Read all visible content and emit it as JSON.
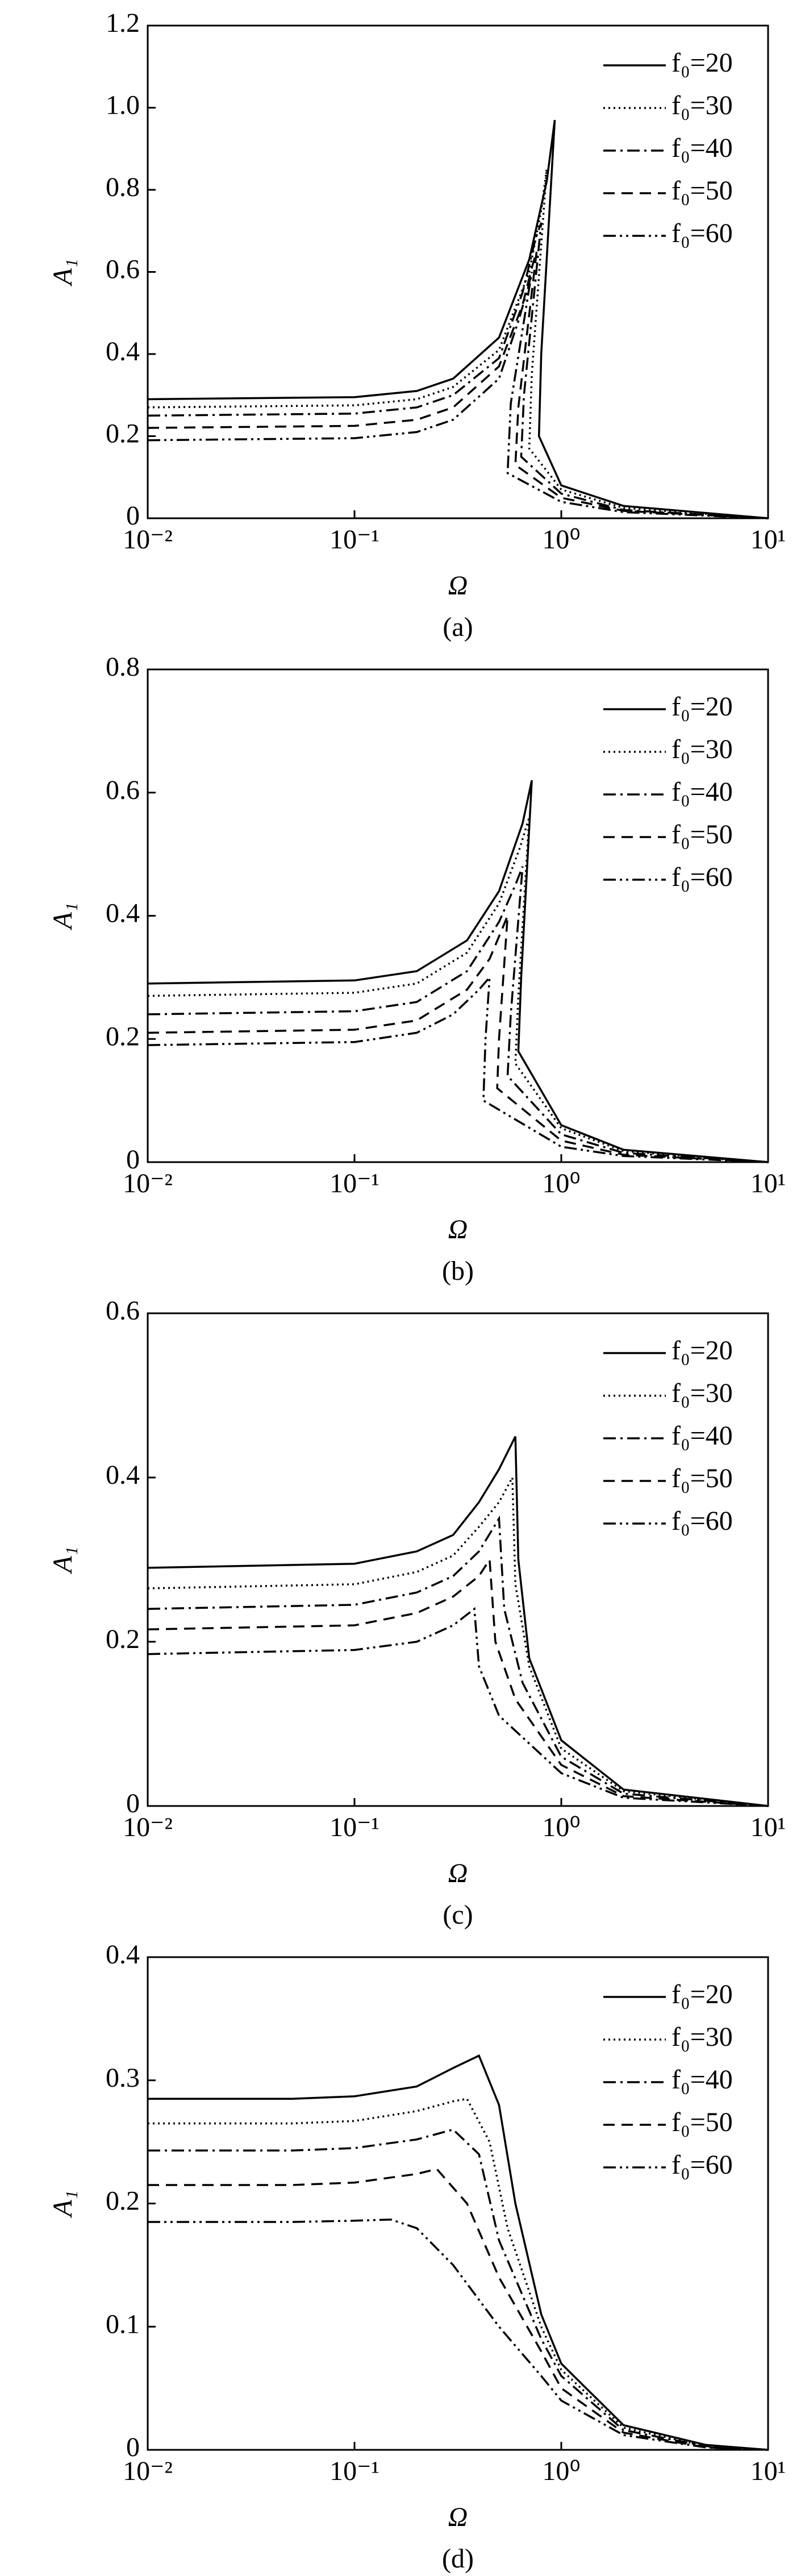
{
  "chart_data": [
    {
      "type": "line",
      "caption": "(a)",
      "x_label": "Ω",
      "y_label": "A₁",
      "log_x": true,
      "xlim": [
        0.01,
        10
      ],
      "xticks": [
        {
          "value": 0.01,
          "label": "10⁻²"
        },
        {
          "value": 0.1,
          "label": "10⁻¹"
        },
        {
          "value": 1,
          "label": "10⁰"
        },
        {
          "value": 10,
          "label": "10¹"
        }
      ],
      "ylim": [
        0,
        1.2
      ],
      "yticks": [
        0,
        0.2,
        0.4,
        0.6,
        0.8,
        {
          "value": 1,
          "label": "1.0"
        },
        1.2
      ],
      "legend": "upper right",
      "series": [
        {
          "name": "f₀=20",
          "color": "#000",
          "dash": "solid",
          "x": [
            0.01,
            0.1,
            0.2,
            0.3,
            0.5,
            0.7,
            0.85,
            0.93,
            0.8,
            0.78,
            1,
            2,
            10
          ],
          "values": [
            0.29,
            0.295,
            0.31,
            0.34,
            0.44,
            0.63,
            0.82,
            0.97,
            0.4,
            0.2,
            0.08,
            0.03,
            0
          ]
        },
        {
          "name": "f₀=30",
          "color": "#000",
          "dash": "dotted",
          "x": [
            0.01,
            0.1,
            0.2,
            0.3,
            0.5,
            0.7,
            0.8,
            0.85,
            0.72,
            0.7,
            1,
            2,
            10
          ],
          "values": [
            0.27,
            0.275,
            0.29,
            0.32,
            0.41,
            0.6,
            0.75,
            0.85,
            0.35,
            0.17,
            0.07,
            0.025,
            0
          ]
        },
        {
          "name": "f₀=40",
          "color": "#000",
          "dash": "dash-dot",
          "x": [
            0.01,
            0.1,
            0.2,
            0.3,
            0.5,
            0.65,
            0.75,
            0.8,
            0.66,
            0.64,
            1,
            2,
            10
          ],
          "values": [
            0.25,
            0.255,
            0.27,
            0.3,
            0.39,
            0.55,
            0.68,
            0.72,
            0.3,
            0.15,
            0.06,
            0.02,
            0
          ]
        },
        {
          "name": "f₀=50",
          "color": "#000",
          "dash": "dashed",
          "x": [
            0.01,
            0.1,
            0.2,
            0.3,
            0.5,
            0.65,
            0.72,
            0.76,
            0.62,
            0.6,
            1,
            2,
            10
          ],
          "values": [
            0.22,
            0.225,
            0.24,
            0.27,
            0.37,
            0.52,
            0.61,
            0.65,
            0.27,
            0.13,
            0.05,
            0.018,
            0
          ]
        },
        {
          "name": "f₀=60",
          "color": "#000",
          "dash": "dash-dot-dot",
          "x": [
            0.01,
            0.1,
            0.2,
            0.3,
            0.5,
            0.62,
            0.69,
            0.72,
            0.57,
            0.55,
            1,
            2,
            10
          ],
          "values": [
            0.19,
            0.195,
            0.21,
            0.24,
            0.34,
            0.48,
            0.56,
            0.6,
            0.28,
            0.11,
            0.04,
            0.015,
            0
          ]
        }
      ]
    },
    {
      "type": "line",
      "caption": "(b)",
      "x_label": "Ω",
      "y_label": "A₁",
      "log_x": true,
      "xlim": [
        0.01,
        10
      ],
      "xticks": [
        {
          "value": 0.01,
          "label": "10⁻²"
        },
        {
          "value": 0.1,
          "label": "10⁻¹"
        },
        {
          "value": 1,
          "label": "10⁰"
        },
        {
          "value": 10,
          "label": "10¹"
        }
      ],
      "ylim": [
        0,
        0.8
      ],
      "yticks": [
        0,
        0.2,
        0.4,
        0.6,
        0.8
      ],
      "legend": "upper right",
      "series": [
        {
          "name": "f₀=20",
          "color": "#000",
          "dash": "solid",
          "x": [
            0.01,
            0.1,
            0.2,
            0.35,
            0.5,
            0.65,
            0.72,
            0.64,
            0.62,
            1,
            2,
            10
          ],
          "values": [
            0.29,
            0.295,
            0.31,
            0.36,
            0.44,
            0.55,
            0.62,
            0.3,
            0.18,
            0.06,
            0.02,
            0
          ]
        },
        {
          "name": "f₀=30",
          "color": "#000",
          "dash": "dotted",
          "x": [
            0.01,
            0.1,
            0.2,
            0.35,
            0.5,
            0.63,
            0.7,
            0.62,
            0.6,
            1,
            2,
            10
          ],
          "values": [
            0.27,
            0.275,
            0.29,
            0.34,
            0.42,
            0.51,
            0.56,
            0.27,
            0.16,
            0.055,
            0.018,
            0
          ]
        },
        {
          "name": "f₀=40",
          "color": "#000",
          "dash": "dash-dot",
          "x": [
            0.01,
            0.1,
            0.2,
            0.35,
            0.5,
            0.6,
            0.65,
            0.57,
            0.55,
            1,
            2,
            10
          ],
          "values": [
            0.24,
            0.245,
            0.26,
            0.31,
            0.39,
            0.45,
            0.48,
            0.24,
            0.14,
            0.045,
            0.015,
            0
          ]
        },
        {
          "name": "f₀=50",
          "color": "#000",
          "dash": "dashed",
          "x": [
            0.01,
            0.1,
            0.2,
            0.35,
            0.45,
            0.52,
            0.55,
            0.5,
            0.49,
            1,
            2,
            10
          ],
          "values": [
            0.21,
            0.215,
            0.23,
            0.28,
            0.33,
            0.38,
            0.4,
            0.2,
            0.12,
            0.035,
            0.012,
            0
          ]
        },
        {
          "name": "f₀=60",
          "color": "#000",
          "dash": "dash-dot-dot",
          "x": [
            0.01,
            0.1,
            0.2,
            0.3,
            0.4,
            0.45,
            0.43,
            0.42,
            1,
            2,
            10
          ],
          "values": [
            0.19,
            0.195,
            0.21,
            0.24,
            0.28,
            0.3,
            0.2,
            0.1,
            0.025,
            0.01,
            0
          ]
        }
      ]
    },
    {
      "type": "line",
      "caption": "(c)",
      "x_label": "Ω",
      "y_label": "A₁",
      "log_x": true,
      "xlim": [
        0.01,
        10
      ],
      "xticks": [
        {
          "value": 0.01,
          "label": "10⁻²"
        },
        {
          "value": 0.1,
          "label": "10⁻¹"
        },
        {
          "value": 1,
          "label": "10⁰"
        },
        {
          "value": 10,
          "label": "10¹"
        }
      ],
      "ylim": [
        0,
        0.6
      ],
      "yticks": [
        0,
        0.2,
        0.4,
        0.6
      ],
      "legend": "upper right",
      "series": [
        {
          "name": "f₀=20",
          "color": "#000",
          "dash": "solid",
          "x": [
            0.01,
            0.1,
            0.2,
            0.3,
            0.4,
            0.5,
            0.6,
            0.62,
            0.7,
            1,
            2,
            10
          ],
          "values": [
            0.29,
            0.295,
            0.31,
            0.33,
            0.37,
            0.41,
            0.45,
            0.3,
            0.18,
            0.08,
            0.02,
            0
          ]
        },
        {
          "name": "f₀=30",
          "color": "#000",
          "dash": "dotted",
          "x": [
            0.01,
            0.1,
            0.2,
            0.3,
            0.4,
            0.5,
            0.58,
            0.6,
            0.7,
            1,
            2,
            10
          ],
          "values": [
            0.265,
            0.27,
            0.285,
            0.305,
            0.34,
            0.37,
            0.4,
            0.27,
            0.17,
            0.07,
            0.018,
            0
          ]
        },
        {
          "name": "f₀=40",
          "color": "#000",
          "dash": "dash-dot",
          "x": [
            0.01,
            0.1,
            0.2,
            0.3,
            0.4,
            0.5,
            0.53,
            0.65,
            1,
            2,
            10
          ],
          "values": [
            0.24,
            0.245,
            0.26,
            0.28,
            0.31,
            0.35,
            0.24,
            0.15,
            0.06,
            0.015,
            0
          ]
        },
        {
          "name": "f₀=50",
          "color": "#000",
          "dash": "dashed",
          "x": [
            0.01,
            0.1,
            0.2,
            0.3,
            0.4,
            0.45,
            0.48,
            0.6,
            1,
            2,
            10
          ],
          "values": [
            0.215,
            0.22,
            0.235,
            0.255,
            0.28,
            0.3,
            0.2,
            0.13,
            0.05,
            0.012,
            0
          ]
        },
        {
          "name": "f₀=60",
          "color": "#000",
          "dash": "dash-dot-dot",
          "x": [
            0.01,
            0.1,
            0.2,
            0.3,
            0.38,
            0.4,
            0.5,
            1,
            2,
            10
          ],
          "values": [
            0.185,
            0.19,
            0.2,
            0.22,
            0.24,
            0.17,
            0.11,
            0.04,
            0.01,
            0
          ]
        }
      ]
    },
    {
      "type": "line",
      "caption": "(d)",
      "x_label": "Ω",
      "y_label": "A₁",
      "log_x": true,
      "xlim": [
        0.01,
        10
      ],
      "xticks": [
        {
          "value": 0.01,
          "label": "10⁻²"
        },
        {
          "value": 0.1,
          "label": "10⁻¹"
        },
        {
          "value": 1,
          "label": "10⁰"
        },
        {
          "value": 10,
          "label": "10¹"
        }
      ],
      "ylim": [
        0,
        0.4
      ],
      "yticks": [
        0,
        0.1,
        0.2,
        0.3,
        0.4
      ],
      "legend": "upper right",
      "series": [
        {
          "name": "f₀=20",
          "color": "#000",
          "dash": "solid",
          "x": [
            0.01,
            0.05,
            0.1,
            0.2,
            0.3,
            0.4,
            0.5,
            0.6,
            0.8,
            1,
            2,
            5,
            10
          ],
          "values": [
            0.285,
            0.285,
            0.287,
            0.295,
            0.31,
            0.32,
            0.28,
            0.2,
            0.11,
            0.07,
            0.02,
            0.004,
            0
          ]
        },
        {
          "name": "f₀=30",
          "color": "#000",
          "dash": "dotted",
          "x": [
            0.01,
            0.05,
            0.1,
            0.2,
            0.3,
            0.35,
            0.45,
            0.55,
            0.8,
            1,
            2,
            5,
            10
          ],
          "values": [
            0.265,
            0.265,
            0.267,
            0.275,
            0.283,
            0.285,
            0.25,
            0.18,
            0.1,
            0.065,
            0.018,
            0.003,
            0
          ]
        },
        {
          "name": "f₀=40",
          "color": "#000",
          "dash": "dash-dot",
          "x": [
            0.01,
            0.05,
            0.1,
            0.2,
            0.3,
            0.4,
            0.5,
            0.8,
            1,
            2,
            5,
            10
          ],
          "values": [
            0.243,
            0.243,
            0.245,
            0.252,
            0.26,
            0.24,
            0.17,
            0.09,
            0.06,
            0.016,
            0.003,
            0
          ]
        },
        {
          "name": "f₀=50",
          "color": "#000",
          "dash": "dashed",
          "x": [
            0.01,
            0.05,
            0.1,
            0.2,
            0.25,
            0.35,
            0.5,
            0.8,
            1,
            2,
            5,
            10
          ],
          "values": [
            0.215,
            0.215,
            0.217,
            0.224,
            0.228,
            0.2,
            0.14,
            0.08,
            0.05,
            0.014,
            0.002,
            0
          ]
        },
        {
          "name": "f₀=60",
          "color": "#000",
          "dash": "dash-dot-dot",
          "x": [
            0.01,
            0.05,
            0.1,
            0.15,
            0.2,
            0.3,
            0.5,
            0.8,
            1,
            2,
            5,
            10
          ],
          "values": [
            0.185,
            0.185,
            0.186,
            0.187,
            0.18,
            0.15,
            0.1,
            0.06,
            0.04,
            0.012,
            0.002,
            0
          ]
        }
      ]
    }
  ]
}
